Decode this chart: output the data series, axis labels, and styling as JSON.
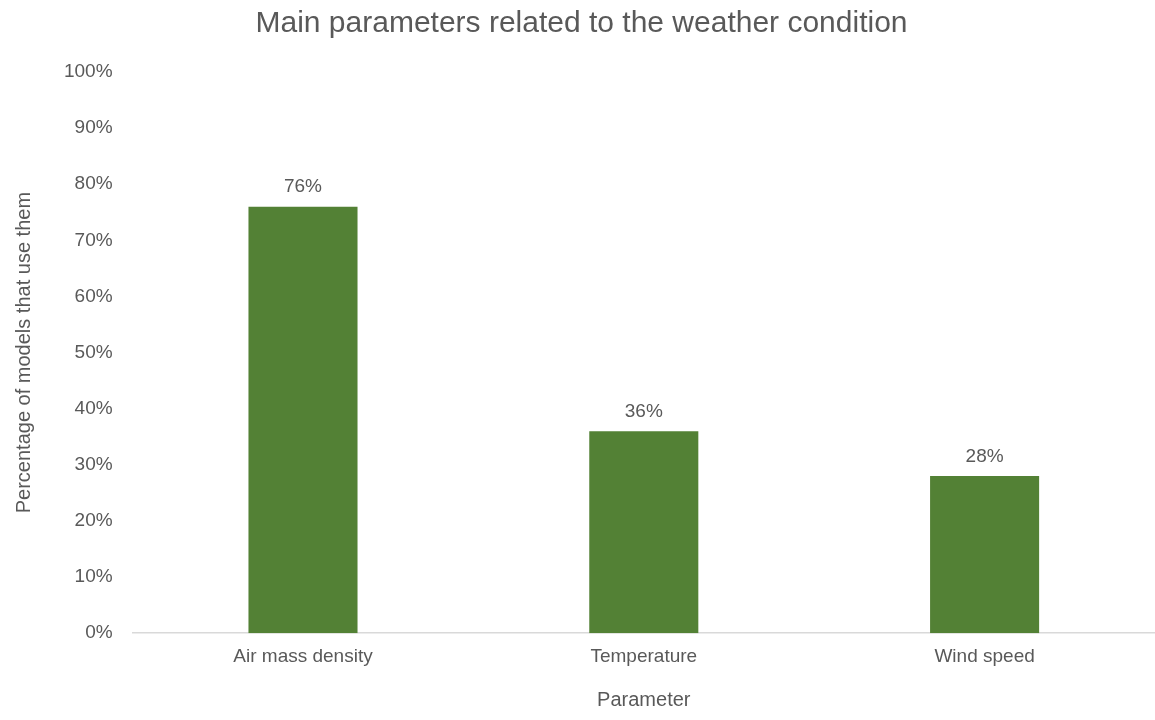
{
  "chart_data": {
    "type": "bar",
    "title": "Main parameters related to the weather condition",
    "xlabel": "Parameter",
    "ylabel": "Percentage of models that use them",
    "categories": [
      "Air mass density",
      "Temperature",
      "Wind speed"
    ],
    "values": [
      76,
      36,
      28
    ],
    "color": "#538135",
    "value_labels": [
      "76%",
      "36%",
      "28%"
    ],
    "ylim": [
      0,
      100
    ],
    "yticks": [
      {
        "value": 0,
        "label": "0%"
      },
      {
        "value": 10,
        "label": "10%"
      },
      {
        "value": 20,
        "label": "20%"
      },
      {
        "value": 30,
        "label": "30%"
      },
      {
        "value": 40,
        "label": "40%"
      },
      {
        "value": 50,
        "label": "50%"
      },
      {
        "value": 60,
        "label": "60%"
      },
      {
        "value": 70,
        "label": "70%"
      },
      {
        "value": 80,
        "label": "80%"
      },
      {
        "value": 90,
        "label": "90%"
      },
      {
        "value": 100,
        "label": "100%"
      }
    ],
    "grid": false,
    "legend": false
  }
}
